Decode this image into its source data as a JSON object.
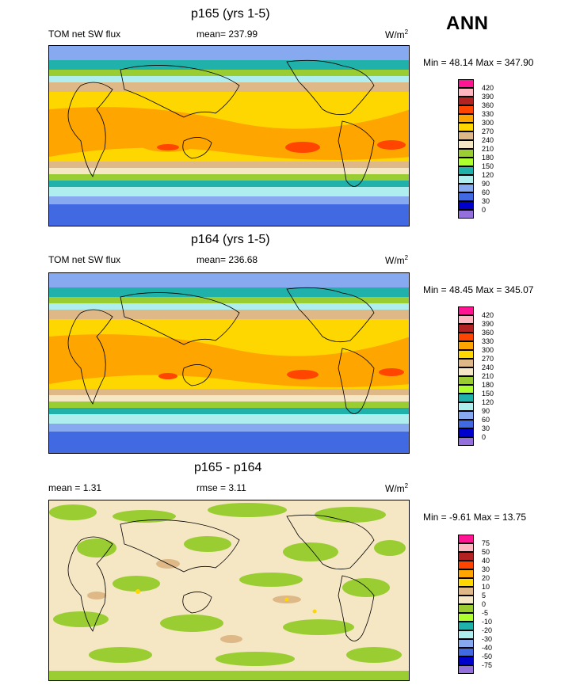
{
  "season": "ANN",
  "variable": "TOM net SW flux",
  "units_base": "W/m",
  "units_exp": "2",
  "panels": [
    {
      "title": "p165 (yrs 1-5)",
      "stats": "mean= 237.99",
      "minmax": "Min =  48.14 Max = 347.90"
    },
    {
      "title": "p164 (yrs 1-5)",
      "stats": "mean= 236.68",
      "minmax": "Min =  48.45 Max = 345.07"
    },
    {
      "title": "p165 - p164",
      "mean_text": "mean =   1.31",
      "rmse_text": "rmse =   3.11",
      "minmax": "Min =  -9.61 Max =  13.75"
    }
  ],
  "legend_levels": [
    "420",
    "390",
    "360",
    "330",
    "300",
    "270",
    "240",
    "210",
    "180",
    "150",
    "120",
    "90",
    "60",
    "30",
    "0"
  ],
  "legend_colors": [
    "#ff1493",
    "#ffb6c1",
    "#b22222",
    "#ff4500",
    "#ffa500",
    "#ffd700",
    "#deb887",
    "#f5e6c4",
    "#9acd32",
    "#adff2f",
    "#20b2aa",
    "#afeeee",
    "#87a9f0",
    "#4169e1",
    "#0000cd",
    "#9370db"
  ],
  "diff_levels": [
    "75",
    "50",
    "40",
    "30",
    "20",
    "10",
    "5",
    "0",
    "-5",
    "-10",
    "-20",
    "-30",
    "-40",
    "-50",
    "-75"
  ],
  "diff_colors": [
    "#ff1493",
    "#ffb6c1",
    "#b22222",
    "#ff4500",
    "#ffa500",
    "#ffd700",
    "#deb887",
    "#f5e6c4",
    "#9acd32",
    "#adff2f",
    "#20b2aa",
    "#afeeee",
    "#87a9f0",
    "#4169e1",
    "#0000cd",
    "#9370db"
  ]
}
